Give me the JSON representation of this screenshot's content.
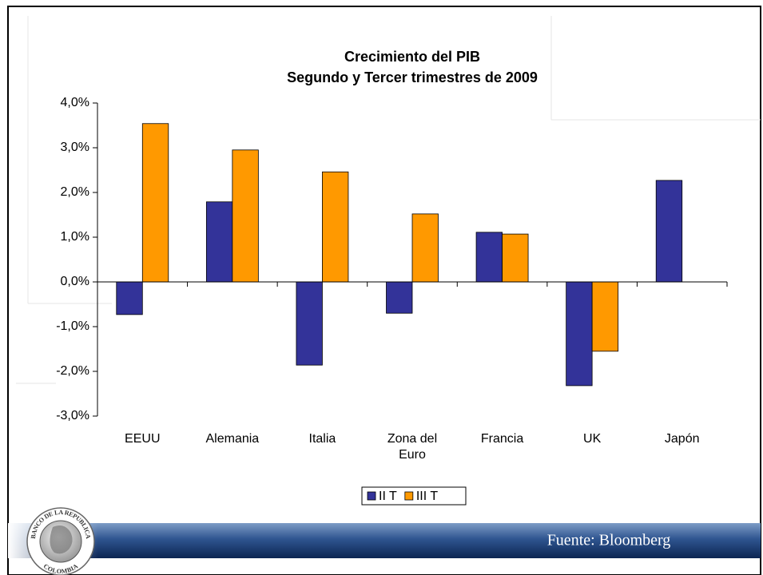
{
  "chart_data": {
    "type": "bar",
    "title": "Crecimiento del PIB",
    "subtitle": "Segundo y Tercer trimestres de 2009",
    "categories": [
      "EEUU",
      "Alemania",
      "Italia",
      "Zona del Euro",
      "Francia",
      "UK",
      "Japón"
    ],
    "series": [
      {
        "name": "II T",
        "color": "#333399",
        "values": [
          -0.73,
          1.79,
          -1.86,
          -0.7,
          1.11,
          -2.32,
          2.27
        ]
      },
      {
        "name": "III T",
        "color": "#ff9900",
        "values": [
          3.54,
          2.95,
          2.46,
          1.52,
          1.07,
          -1.55,
          null
        ]
      }
    ],
    "ylim": [
      -3,
      4
    ],
    "yticks": [
      {
        "value": -3,
        "label": "-3,0%"
      },
      {
        "value": -2,
        "label": "-2,0%"
      },
      {
        "value": -1,
        "label": "-1,0%"
      },
      {
        "value": 0,
        "label": "0,0%"
      },
      {
        "value": 1,
        "label": "1,0%"
      },
      {
        "value": 2,
        "label": "2,0%"
      },
      {
        "value": 3,
        "label": "3,0%"
      },
      {
        "value": 4,
        "label": "4,0%"
      }
    ],
    "legend": "bottom"
  },
  "footer": {
    "source": "Fuente: Bloomberg",
    "logo_top": "BANCO DE LA REPUBLICA",
    "logo_bottom": "COLOMBIA"
  }
}
